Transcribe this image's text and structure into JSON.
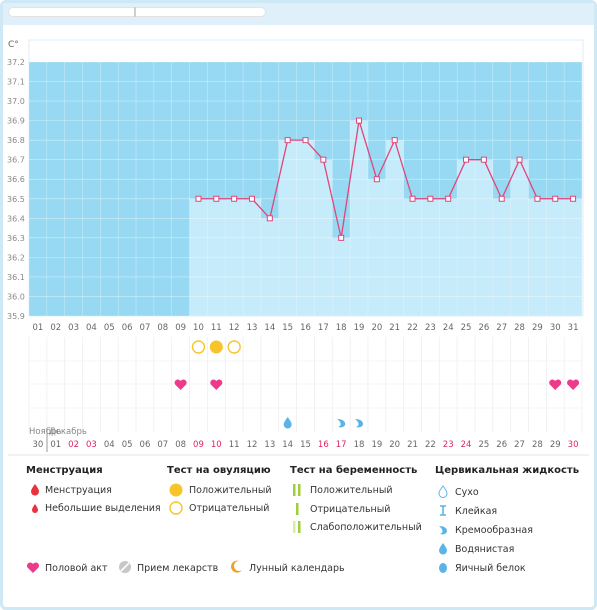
{
  "chart_data": {
    "type": "bar",
    "ylabel": "C°",
    "ylim": [
      35.9,
      37.2
    ],
    "yticks": [
      "37.2",
      "37.1",
      "37.0",
      "36.9",
      "36.8",
      "36.7",
      "36.6",
      "36.5",
      "36.4",
      "36.3",
      "36.2",
      "36.1",
      "36.0",
      "35.9"
    ],
    "categories": [
      "01",
      "02",
      "03",
      "04",
      "05",
      "06",
      "07",
      "08",
      "09",
      "10",
      "11",
      "12",
      "13",
      "14",
      "15",
      "16",
      "17",
      "18",
      "19",
      "20",
      "21",
      "22",
      "23",
      "24",
      "25",
      "26",
      "27",
      "28",
      "29",
      "30",
      "31"
    ],
    "series": [
      {
        "values": [
          null,
          null,
          null,
          null,
          null,
          null,
          null,
          null,
          null,
          36.5,
          36.5,
          36.5,
          36.5,
          36.4,
          36.8,
          36.8,
          36.7,
          36.3,
          36.9,
          36.6,
          36.8,
          36.5,
          36.5,
          36.5,
          36.7,
          36.7,
          36.5,
          36.7,
          36.5,
          36.5,
          36.5
        ]
      }
    ],
    "grid": true,
    "colors": {
      "background": "#97d9f2",
      "bar": "#c6ebfa",
      "line": "#e0467c",
      "point_fill": "#ffffff"
    }
  },
  "markers": {
    "ovulation_positive_day": "11",
    "ovulation_negative_days": [
      "10",
      "12"
    ],
    "intercourse_days": [
      "09",
      "11",
      "30",
      "31"
    ],
    "fluid_days": [
      "15",
      "18",
      "19"
    ]
  },
  "bottom_axis": {
    "month_labels": [
      "Ноябрь",
      "Декабрь"
    ],
    "days": [
      {
        "d": "30",
        "red": false
      },
      {
        "d": "01",
        "red": false
      },
      {
        "d": "02",
        "red": true
      },
      {
        "d": "03",
        "red": true
      },
      {
        "d": "04",
        "red": false
      },
      {
        "d": "05",
        "red": false
      },
      {
        "d": "06",
        "red": false
      },
      {
        "d": "07",
        "red": false
      },
      {
        "d": "08",
        "red": false
      },
      {
        "d": "09",
        "red": true
      },
      {
        "d": "10",
        "red": true
      },
      {
        "d": "11",
        "red": false
      },
      {
        "d": "12",
        "red": false
      },
      {
        "d": "13",
        "red": false
      },
      {
        "d": "14",
        "red": false
      },
      {
        "d": "15",
        "red": false
      },
      {
        "d": "16",
        "red": true
      },
      {
        "d": "17",
        "red": true
      },
      {
        "d": "18",
        "red": false
      },
      {
        "d": "19",
        "red": false
      },
      {
        "d": "20",
        "red": false
      },
      {
        "d": "21",
        "red": false
      },
      {
        "d": "22",
        "red": false
      },
      {
        "d": "23",
        "red": true
      },
      {
        "d": "24",
        "red": true
      },
      {
        "d": "25",
        "red": false
      },
      {
        "d": "26",
        "red": false
      },
      {
        "d": "27",
        "red": false
      },
      {
        "d": "28",
        "red": false
      },
      {
        "d": "29",
        "red": false
      },
      {
        "d": "30",
        "red": true
      }
    ]
  },
  "legend": {
    "menstruation": {
      "title": "Менструация",
      "items": [
        "Менструация",
        "Небольшие выделения"
      ]
    },
    "ovulation_test": {
      "title": "Тест на овуляцию",
      "items": [
        "Положительный",
        "Отрицательный"
      ]
    },
    "pregnancy_test": {
      "title": "Тест на беременность",
      "items": [
        "Положительный",
        "Отрицательный",
        "Слабоположительный"
      ]
    },
    "cervical_fluid": {
      "title": "Цервикальная жидкость",
      "items": [
        "Сухо",
        "Клейкая",
        "Кремообразная",
        "Водянистая",
        "Яичный белок"
      ]
    },
    "extra": [
      "Половой акт",
      "Прием лекарств",
      "Лунный календарь"
    ]
  }
}
